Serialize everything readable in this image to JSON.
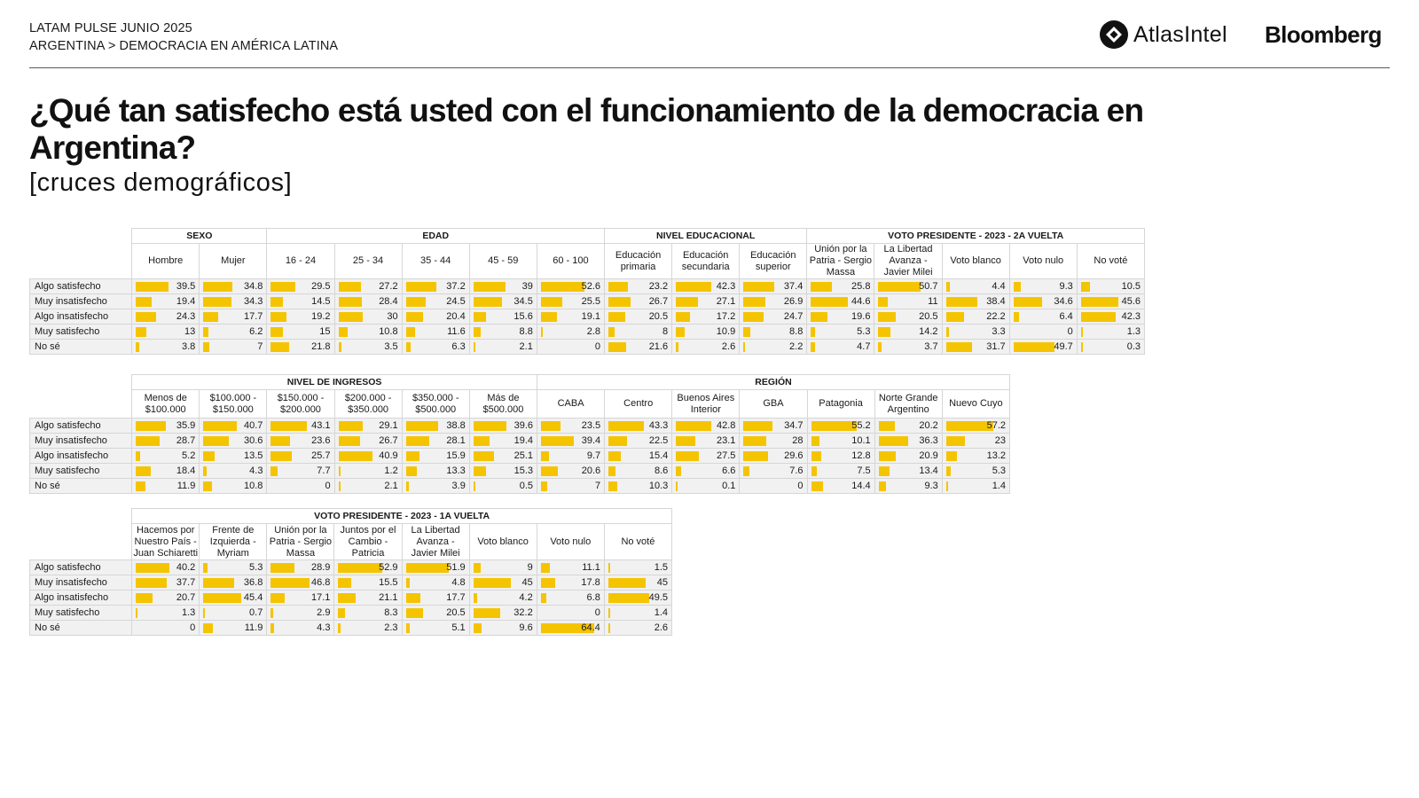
{
  "header": {
    "line1": "LATAM PULSE JUNIO 2025",
    "line2": "ARGENTINA > DEMOCRACIA EN AMÉRICA LATINA",
    "brand_atlas": "AtlasIntel",
    "brand_bloomberg": "Bloomberg"
  },
  "title": "¿Qué tan satisfecho está usted con el funcionamiento de la democracia en Argentina?",
  "subtitle": "[cruces demográficos]",
  "colors": {
    "bar": "#f5c400",
    "cell_bg": "#f1f1f1",
    "border": "#d6d6d6"
  },
  "chart_data": [
    {
      "type": "table",
      "title": "Sexo / Edad / Nivel educacional / Voto presidente - 2023 - 2a vuelta",
      "groups": [
        {
          "label": "SEXO",
          "span": 2
        },
        {
          "label": "EDAD",
          "span": 5
        },
        {
          "label": "NIVEL EDUCACIONAL",
          "span": 3
        },
        {
          "label": "VOTO PRESIDENTE - 2023 - 2A VUELTA",
          "span": 5
        }
      ],
      "columns": [
        "Hombre",
        "Mujer",
        "16 - 24",
        "25 - 34",
        "35 - 44",
        "45 - 59",
        "60 - 100",
        "Educación primaria",
        "Educación secundaria",
        "Educación superior",
        "Unión por la Patria - Sergio Massa",
        "La Libertad Avanza - Javier Milei",
        "Voto blanco",
        "Voto nulo",
        "No voté"
      ],
      "rows": [
        {
          "label": "Algo satisfecho",
          "values": [
            39.5,
            34.8,
            29.5,
            27.2,
            37.2,
            39,
            52.6,
            23.2,
            42.3,
            37.4,
            25.8,
            50.7,
            4.4,
            9.3,
            10.5
          ]
        },
        {
          "label": "Muy insatisfecho",
          "values": [
            19.4,
            34.3,
            14.5,
            28.4,
            24.5,
            34.5,
            25.5,
            26.7,
            27.1,
            26.9,
            44.6,
            11,
            38.4,
            34.6,
            45.6
          ]
        },
        {
          "label": "Algo insatisfecho",
          "values": [
            24.3,
            17.7,
            19.2,
            30,
            20.4,
            15.6,
            19.1,
            20.5,
            17.2,
            24.7,
            19.6,
            20.5,
            22.2,
            6.4,
            42.3
          ]
        },
        {
          "label": "Muy satisfecho",
          "values": [
            13,
            6.2,
            15,
            10.8,
            11.6,
            8.8,
            2.8,
            8,
            10.9,
            8.8,
            5.3,
            14.2,
            3.3,
            0,
            1.3
          ]
        },
        {
          "label": "No sé",
          "values": [
            3.8,
            7,
            21.8,
            3.5,
            6.3,
            2.1,
            0,
            21.6,
            2.6,
            2.2,
            4.7,
            3.7,
            31.7,
            49.7,
            0.3
          ]
        }
      ]
    },
    {
      "type": "table",
      "title": "Nivel de ingresos / Región",
      "groups": [
        {
          "label": "NIVEL DE INGRESOS",
          "span": 6
        },
        {
          "label": "REGIÓN",
          "span": 7
        }
      ],
      "columns": [
        "Menos de $100.000",
        "$100.000 - $150.000",
        "$150.000 - $200.000",
        "$200.000 - $350.000",
        "$350.000 - $500.000",
        "Más de $500.000",
        "CABA",
        "Centro",
        "Buenos Aires Interior",
        "GBA",
        "Patagonia",
        "Norte Grande Argentino",
        "Nuevo Cuyo"
      ],
      "rows": [
        {
          "label": "Algo satisfecho",
          "values": [
            35.9,
            40.7,
            43.1,
            29.1,
            38.8,
            39.6,
            23.5,
            43.3,
            42.8,
            34.7,
            55.2,
            20.2,
            57.2
          ]
        },
        {
          "label": "Muy insatisfecho",
          "values": [
            28.7,
            30.6,
            23.6,
            26.7,
            28.1,
            19.4,
            39.4,
            22.5,
            23.1,
            28,
            10.1,
            36.3,
            23
          ]
        },
        {
          "label": "Algo insatisfecho",
          "values": [
            5.2,
            13.5,
            25.7,
            40.9,
            15.9,
            25.1,
            9.7,
            15.4,
            27.5,
            29.6,
            12.8,
            20.9,
            13.2
          ]
        },
        {
          "label": "Muy satisfecho",
          "values": [
            18.4,
            4.3,
            7.7,
            1.2,
            13.3,
            15.3,
            20.6,
            8.6,
            6.6,
            7.6,
            7.5,
            13.4,
            5.3
          ]
        },
        {
          "label": "No sé",
          "values": [
            11.9,
            10.8,
            0,
            2.1,
            3.9,
            0.5,
            7,
            10.3,
            0.1,
            0,
            14.4,
            9.3,
            1.4
          ]
        }
      ]
    },
    {
      "type": "table",
      "title": "Voto presidente - 2023 - 1a vuelta",
      "groups": [
        {
          "label": "VOTO PRESIDENTE - 2023 - 1A VUELTA",
          "span": 8
        }
      ],
      "columns": [
        "Hacemos por Nuestro País - Juan Schiaretti",
        "Frente de Izquierda - Myriam",
        "Unión por la Patria - Sergio Massa",
        "Juntos por el Cambio - Patricia",
        "La Libertad Avanza - Javier Milei",
        "Voto blanco",
        "Voto nulo",
        "No voté"
      ],
      "rows": [
        {
          "label": "Algo satisfecho",
          "values": [
            40.2,
            5.3,
            28.9,
            52.9,
            51.9,
            9,
            11.1,
            1.5
          ]
        },
        {
          "label": "Muy insatisfecho",
          "values": [
            37.7,
            36.8,
            46.8,
            15.5,
            4.8,
            45,
            17.8,
            45
          ]
        },
        {
          "label": "Algo insatisfecho",
          "values": [
            20.7,
            45.4,
            17.1,
            21.1,
            17.7,
            4.2,
            6.8,
            49.5
          ]
        },
        {
          "label": "Muy satisfecho",
          "values": [
            1.3,
            0.7,
            2.9,
            8.3,
            20.5,
            32.2,
            0,
            1.4
          ]
        },
        {
          "label": "No sé",
          "values": [
            0,
            11.9,
            4.3,
            2.3,
            5.1,
            9.6,
            64.4,
            2.6
          ]
        }
      ]
    }
  ]
}
